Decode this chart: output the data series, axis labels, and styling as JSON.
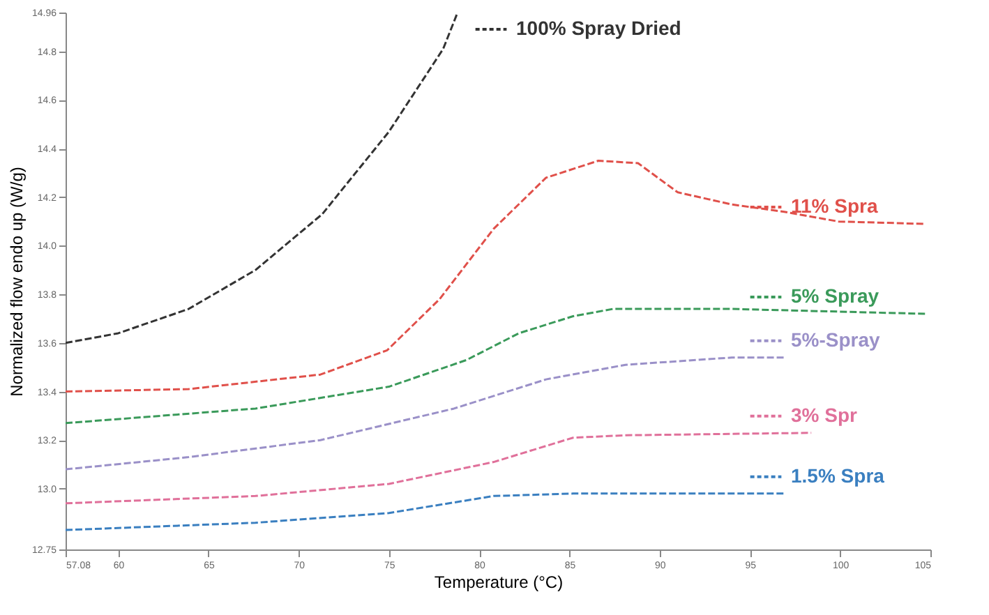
{
  "chart_data": {
    "type": "line",
    "xlabel": "Temperature (°C)",
    "ylabel": "Normalized flow endo up (W/g)",
    "xlim": [
      57.08,
      105
    ],
    "xticks": [
      57.08,
      60,
      65,
      70,
      75,
      80,
      85,
      90,
      95,
      100,
      105
    ],
    "ylim": [
      12.75,
      14.96
    ],
    "yticks": [
      12.75,
      {
        "value": 13,
        "label": "13.0"
      },
      13.2,
      13.4,
      13.6,
      13.8,
      {
        "value": 14,
        "label": "14.0"
      },
      14.2,
      14.4,
      14.6,
      14.8,
      14.96
    ],
    "grid": false,
    "legend": "right",
    "line_style": "dashed",
    "marker": "none",
    "series": [
      {
        "name": "100% Spray Dried",
        "color": "#333333",
        "x": [
          57.08,
          60,
          63.9,
          67.6,
          71.3,
          75,
          78,
          78.8
        ],
        "values": [
          13.6,
          13.64,
          13.74,
          13.9,
          14.13,
          14.47,
          14.81,
          14.96
        ]
      },
      {
        "name": "11% Spra",
        "color": "#e0504a",
        "x": [
          57.08,
          63.9,
          71.2,
          74.9,
          77.8,
          80.8,
          83.7,
          86.6,
          88.8,
          91,
          94,
          96.9,
          99.9,
          104.7
        ],
        "values": [
          13.4,
          13.41,
          13.47,
          13.57,
          13.78,
          14.07,
          14.28,
          14.35,
          14.34,
          14.22,
          14.17,
          14.14,
          14.1,
          14.09
        ]
      },
      {
        "name": "5% Spray",
        "color": "#3a9a5a",
        "x": [
          57.08,
          67.6,
          75,
          79.3,
          82.2,
          85.2,
          87.4,
          94,
          104.7
        ],
        "values": [
          13.27,
          13.33,
          13.42,
          13.53,
          13.64,
          13.71,
          13.74,
          13.74,
          13.72
        ]
      },
      {
        "name": "5%-Spray",
        "color": "#9a90c8",
        "x": [
          57.08,
          63.9,
          71.2,
          78.6,
          83.7,
          88.1,
          94,
          96.9
        ],
        "values": [
          13.08,
          13.13,
          13.2,
          13.33,
          13.45,
          13.51,
          13.54,
          13.54
        ]
      },
      {
        "name": "3% Spr",
        "color": "#e0709a",
        "x": [
          57.08,
          67.6,
          75,
          80.8,
          85.2,
          88.1,
          98.4
        ],
        "values": [
          12.94,
          12.97,
          13.02,
          13.11,
          13.21,
          13.22,
          13.23
        ]
      },
      {
        "name": "1.5% Spra",
        "color": "#3a7fc0",
        "x": [
          57.08,
          67.6,
          75,
          80.8,
          85.2,
          89.6,
          96.9
        ],
        "values": [
          12.83,
          12.86,
          12.9,
          12.97,
          12.98,
          12.98,
          12.98
        ]
      }
    ]
  }
}
